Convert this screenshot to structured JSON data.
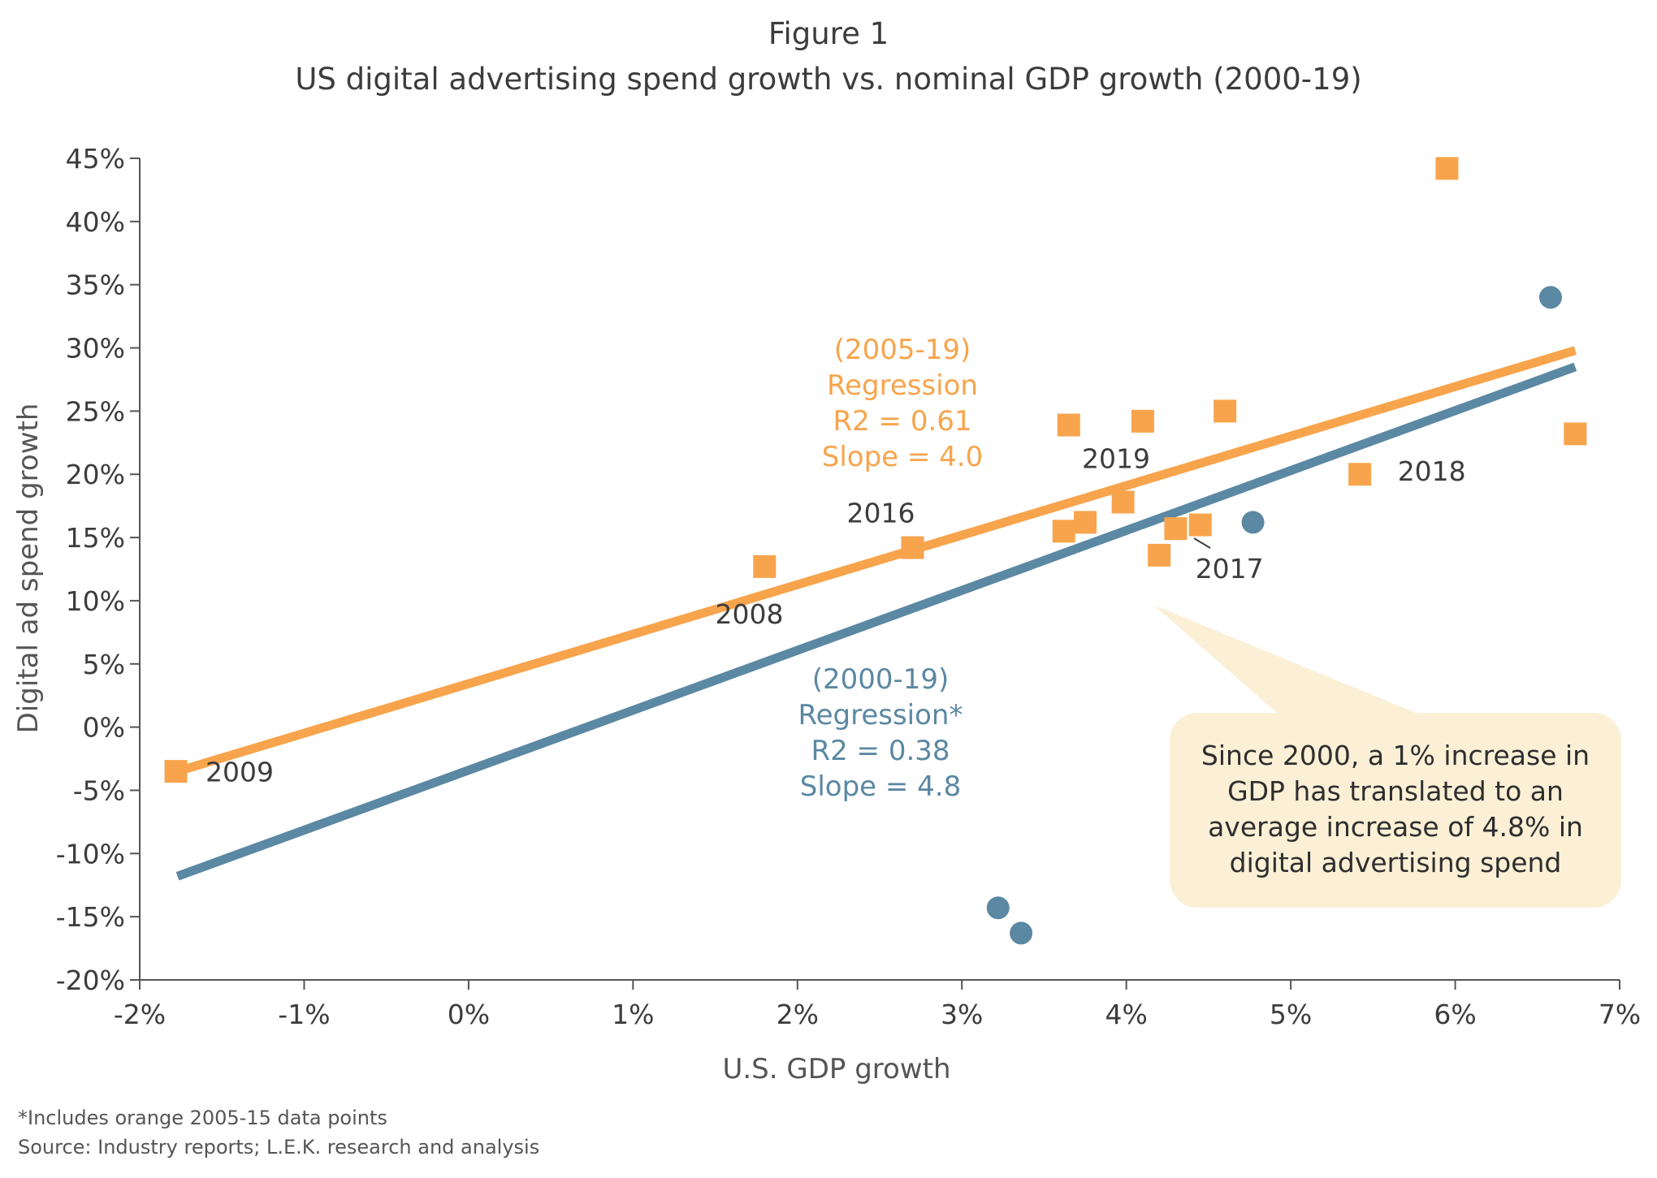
{
  "chart_data": {
    "type": "scatter",
    "title": "Figure 1",
    "subtitle": "US digital advertising spend growth vs. nominal GDP growth (2000-19)",
    "xlabel": "U.S. GDP growth",
    "ylabel": "Digital ad spend growth",
    "xlim": [
      -2,
      7
    ],
    "ylim": [
      -20,
      45
    ],
    "x_ticks": [
      -2,
      -1,
      0,
      1,
      2,
      3,
      4,
      5,
      6,
      7
    ],
    "x_tick_labels": [
      "-2%",
      "-1%",
      "0%",
      "1%",
      "2%",
      "3%",
      "4%",
      "5%",
      "6%",
      "7%"
    ],
    "y_ticks": [
      -20,
      -15,
      -10,
      -5,
      0,
      5,
      10,
      15,
      20,
      25,
      30,
      35,
      40,
      45
    ],
    "y_tick_labels": [
      "-20%",
      "-15%",
      "-10%",
      "-5%",
      "0%",
      "5%",
      "10%",
      "15%",
      "20%",
      "25%",
      "30%",
      "35%",
      "40%",
      "45%"
    ],
    "grid": false,
    "colors": {
      "orange": "#f7a44c",
      "blue": "#5b88a3",
      "callout_fill": "#fbf0d6",
      "axis": "#555555"
    },
    "series": [
      {
        "marker": "square",
        "color": "#f7a44c",
        "points": [
          {
            "x": -1.78,
            "y": -3.5
          },
          {
            "x": 1.8,
            "y": 12.7
          },
          {
            "x": 2.7,
            "y": 14.2
          },
          {
            "x": 3.62,
            "y": 15.5
          },
          {
            "x": 3.65,
            "y": 23.9
          },
          {
            "x": 3.75,
            "y": 16.2
          },
          {
            "x": 3.98,
            "y": 17.8
          },
          {
            "x": 4.1,
            "y": 24.2
          },
          {
            "x": 4.2,
            "y": 13.6
          },
          {
            "x": 4.3,
            "y": 15.7
          },
          {
            "x": 4.45,
            "y": 16.0
          },
          {
            "x": 4.6,
            "y": 25.0
          },
          {
            "x": 5.42,
            "y": 20.0
          },
          {
            "x": 5.95,
            "y": 44.2
          },
          {
            "x": 6.73,
            "y": 23.2
          }
        ]
      },
      {
        "marker": "circle",
        "color": "#5b88a3",
        "points": [
          {
            "x": 3.22,
            "y": -14.3
          },
          {
            "x": 3.36,
            "y": -16.3
          },
          {
            "x": 4.77,
            "y": 16.2
          },
          {
            "x": 6.58,
            "y": 34.0
          }
        ]
      }
    ],
    "regression_lines": [
      {
        "color": "#f7a44c",
        "x": [
          -1.77,
          6.73
        ],
        "y": [
          -3.5,
          29.8
        ]
      },
      {
        "color": "#5b88a3",
        "x": [
          -1.77,
          6.73
        ],
        "y": [
          -11.8,
          28.5
        ]
      }
    ],
    "point_labels": [
      {
        "text": "2009",
        "x": -1.6,
        "y": -4.3
      },
      {
        "text": "2008",
        "x": 1.5,
        "y": 8.2
      },
      {
        "text": "2016",
        "x": 2.3,
        "y": 16.2
      },
      {
        "text": "2019",
        "x": 3.73,
        "y": 20.5
      },
      {
        "text": "2017",
        "x": 4.42,
        "y": 11.8
      },
      {
        "text": "2018",
        "x": 5.65,
        "y": 19.5
      }
    ],
    "regression_annotations": [
      {
        "color": "#f7a44c",
        "lines": [
          "(2005-19)",
          "Regression",
          "R2 = 0.61",
          "Slope = 4.0"
        ]
      },
      {
        "color": "#5b88a3",
        "lines": [
          "(2000-19)",
          "Regression*",
          "R2 = 0.38",
          "Slope = 4.8"
        ]
      }
    ],
    "callout": [
      "Since 2000, a 1% increase in",
      "GDP has translated to an",
      "average increase of 4.8% in",
      "digital advertising spend"
    ],
    "footnotes": [
      "*Includes orange 2005-15 data points",
      "Source: Industry reports; L.E.K. research and analysis"
    ]
  }
}
